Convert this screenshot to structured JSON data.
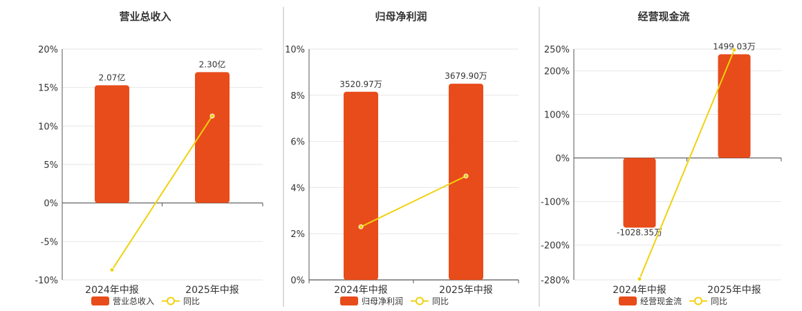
{
  "colors": {
    "bar": "#e84c1a",
    "line": "#f0d10f",
    "text": "#333333",
    "grid": "#e6e6e6",
    "axis": "#555555",
    "divider": "#bbbbbb"
  },
  "legend_line_label": "同比",
  "chart_data": [
    {
      "type": "bar",
      "title": "营业总收入",
      "categories": [
        "2024年中报",
        "2025年中报"
      ],
      "series": [
        {
          "name": "营业总收入",
          "kind": "bar",
          "values": [
            15.3,
            17.0
          ],
          "labels": [
            "2.07亿",
            "2.30亿"
          ]
        },
        {
          "name": "同比",
          "kind": "line",
          "values": [
            -8.7,
            11.3
          ]
        }
      ],
      "ylim": [
        -10,
        20
      ],
      "yticks": [
        -10,
        -5,
        0,
        5,
        10,
        15,
        20
      ],
      "ytick_labels": [
        "-10%",
        "-5%",
        "0%",
        "5%",
        "10%",
        "15%",
        "20%"
      ],
      "grid": true,
      "legend": "bottom"
    },
    {
      "type": "bar",
      "title": "归母净利润",
      "categories": [
        "2024年中报",
        "2025年中报"
      ],
      "series": [
        {
          "name": "归母净利润",
          "kind": "bar",
          "values": [
            8.15,
            8.5
          ],
          "labels": [
            "3520.97万",
            "3679.90万"
          ]
        },
        {
          "name": "同比",
          "kind": "line",
          "values": [
            2.3,
            4.5
          ]
        }
      ],
      "ylim": [
        0,
        10
      ],
      "yticks": [
        0,
        2,
        4,
        6,
        8,
        10
      ],
      "ytick_labels": [
        "0%",
        "2%",
        "4%",
        "6%",
        "8%",
        "10%"
      ],
      "grid": true,
      "legend": "bottom"
    },
    {
      "type": "bar",
      "title": "经营现金流",
      "categories": [
        "2024年中报",
        "2025年中报"
      ],
      "series": [
        {
          "name": "经营现金流",
          "kind": "bar",
          "values": [
            -160,
            238
          ],
          "labels": [
            "-1028.35万",
            "1499.03万"
          ]
        },
        {
          "name": "同比",
          "kind": "line",
          "values": [
            -278,
            248
          ]
        }
      ],
      "ylim": [
        -280,
        250
      ],
      "yticks": [
        -280,
        -200,
        -100,
        0,
        100,
        200,
        250
      ],
      "ytick_labels": [
        "-280%",
        "-200%",
        "-100%",
        "0%",
        "100%",
        "200%",
        "250%"
      ],
      "grid": true,
      "legend": "bottom"
    }
  ]
}
